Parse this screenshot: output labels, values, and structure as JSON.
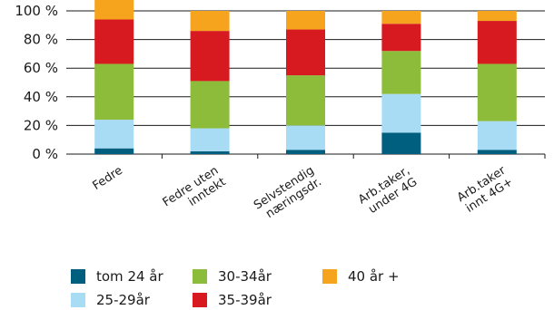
{
  "chart_data": {
    "type": "bar",
    "stacked": true,
    "categories": [
      [
        "Fedre"
      ],
      [
        "Fedre uten",
        "inntekt"
      ],
      [
        "Selvstendig",
        "næringsdr."
      ],
      [
        "Arb.taker,",
        "under 4G"
      ],
      [
        "Arb.taker",
        "innt 4G+"
      ]
    ],
    "ylim": [
      0,
      100
    ],
    "yticks": [
      0,
      20,
      40,
      60,
      80,
      100
    ],
    "ytick_suffix": " %",
    "grid": true,
    "legend_position": "bottom",
    "series": [
      {
        "name": "tom 24 år",
        "color": "#005e7e",
        "values": [
          4,
          2,
          3,
          15,
          3
        ]
      },
      {
        "name": "25-29år",
        "color": "#a8dcf5",
        "values": [
          20,
          16,
          17,
          27,
          20
        ]
      },
      {
        "name": "30-34år",
        "color": "#8dbb3a",
        "values": [
          39,
          33,
          35,
          30,
          40
        ]
      },
      {
        "name": "35-39år",
        "color": "#d71920",
        "values": [
          31,
          35,
          32,
          19,
          30
        ]
      },
      {
        "name": "40 år +",
        "color": "#f6a31e",
        "values": [
          16,
          14,
          13,
          9,
          7
        ]
      }
    ]
  }
}
